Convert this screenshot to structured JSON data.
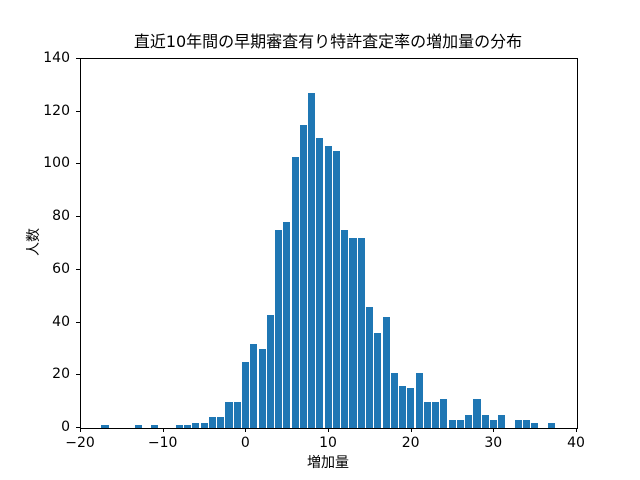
{
  "figure": {
    "background": "#ffffff"
  },
  "chart_data": {
    "type": "bar",
    "subtype": "histogram",
    "title": "直近10年間の早期審査有り特許査定率の増加量の分布",
    "xlabel": "増加量",
    "ylabel": "人数",
    "xlim": [
      -20,
      40
    ],
    "ylim": [
      0,
      140
    ],
    "xticks": [
      -20,
      -10,
      0,
      10,
      20,
      30,
      40
    ],
    "yticks": [
      0,
      20,
      40,
      60,
      80,
      100,
      120,
      140
    ],
    "grid": false,
    "legend": "none",
    "bar_color": "#1f77b4",
    "axis_color": "#000000",
    "bin_start": -17.6,
    "bin_width": 1.0,
    "counts": [
      1,
      0,
      0,
      0,
      1,
      0,
      1,
      0,
      0,
      1,
      1,
      2,
      2,
      4,
      4,
      10,
      10,
      25,
      32,
      30,
      43,
      75,
      78,
      103,
      115,
      127,
      110,
      107,
      105,
      75,
      72,
      72,
      46,
      36,
      42,
      21,
      16,
      15,
      21,
      10,
      10,
      11,
      3,
      3,
      5,
      11,
      5,
      3,
      5,
      0,
      3,
      3,
      2,
      0,
      2
    ]
  }
}
